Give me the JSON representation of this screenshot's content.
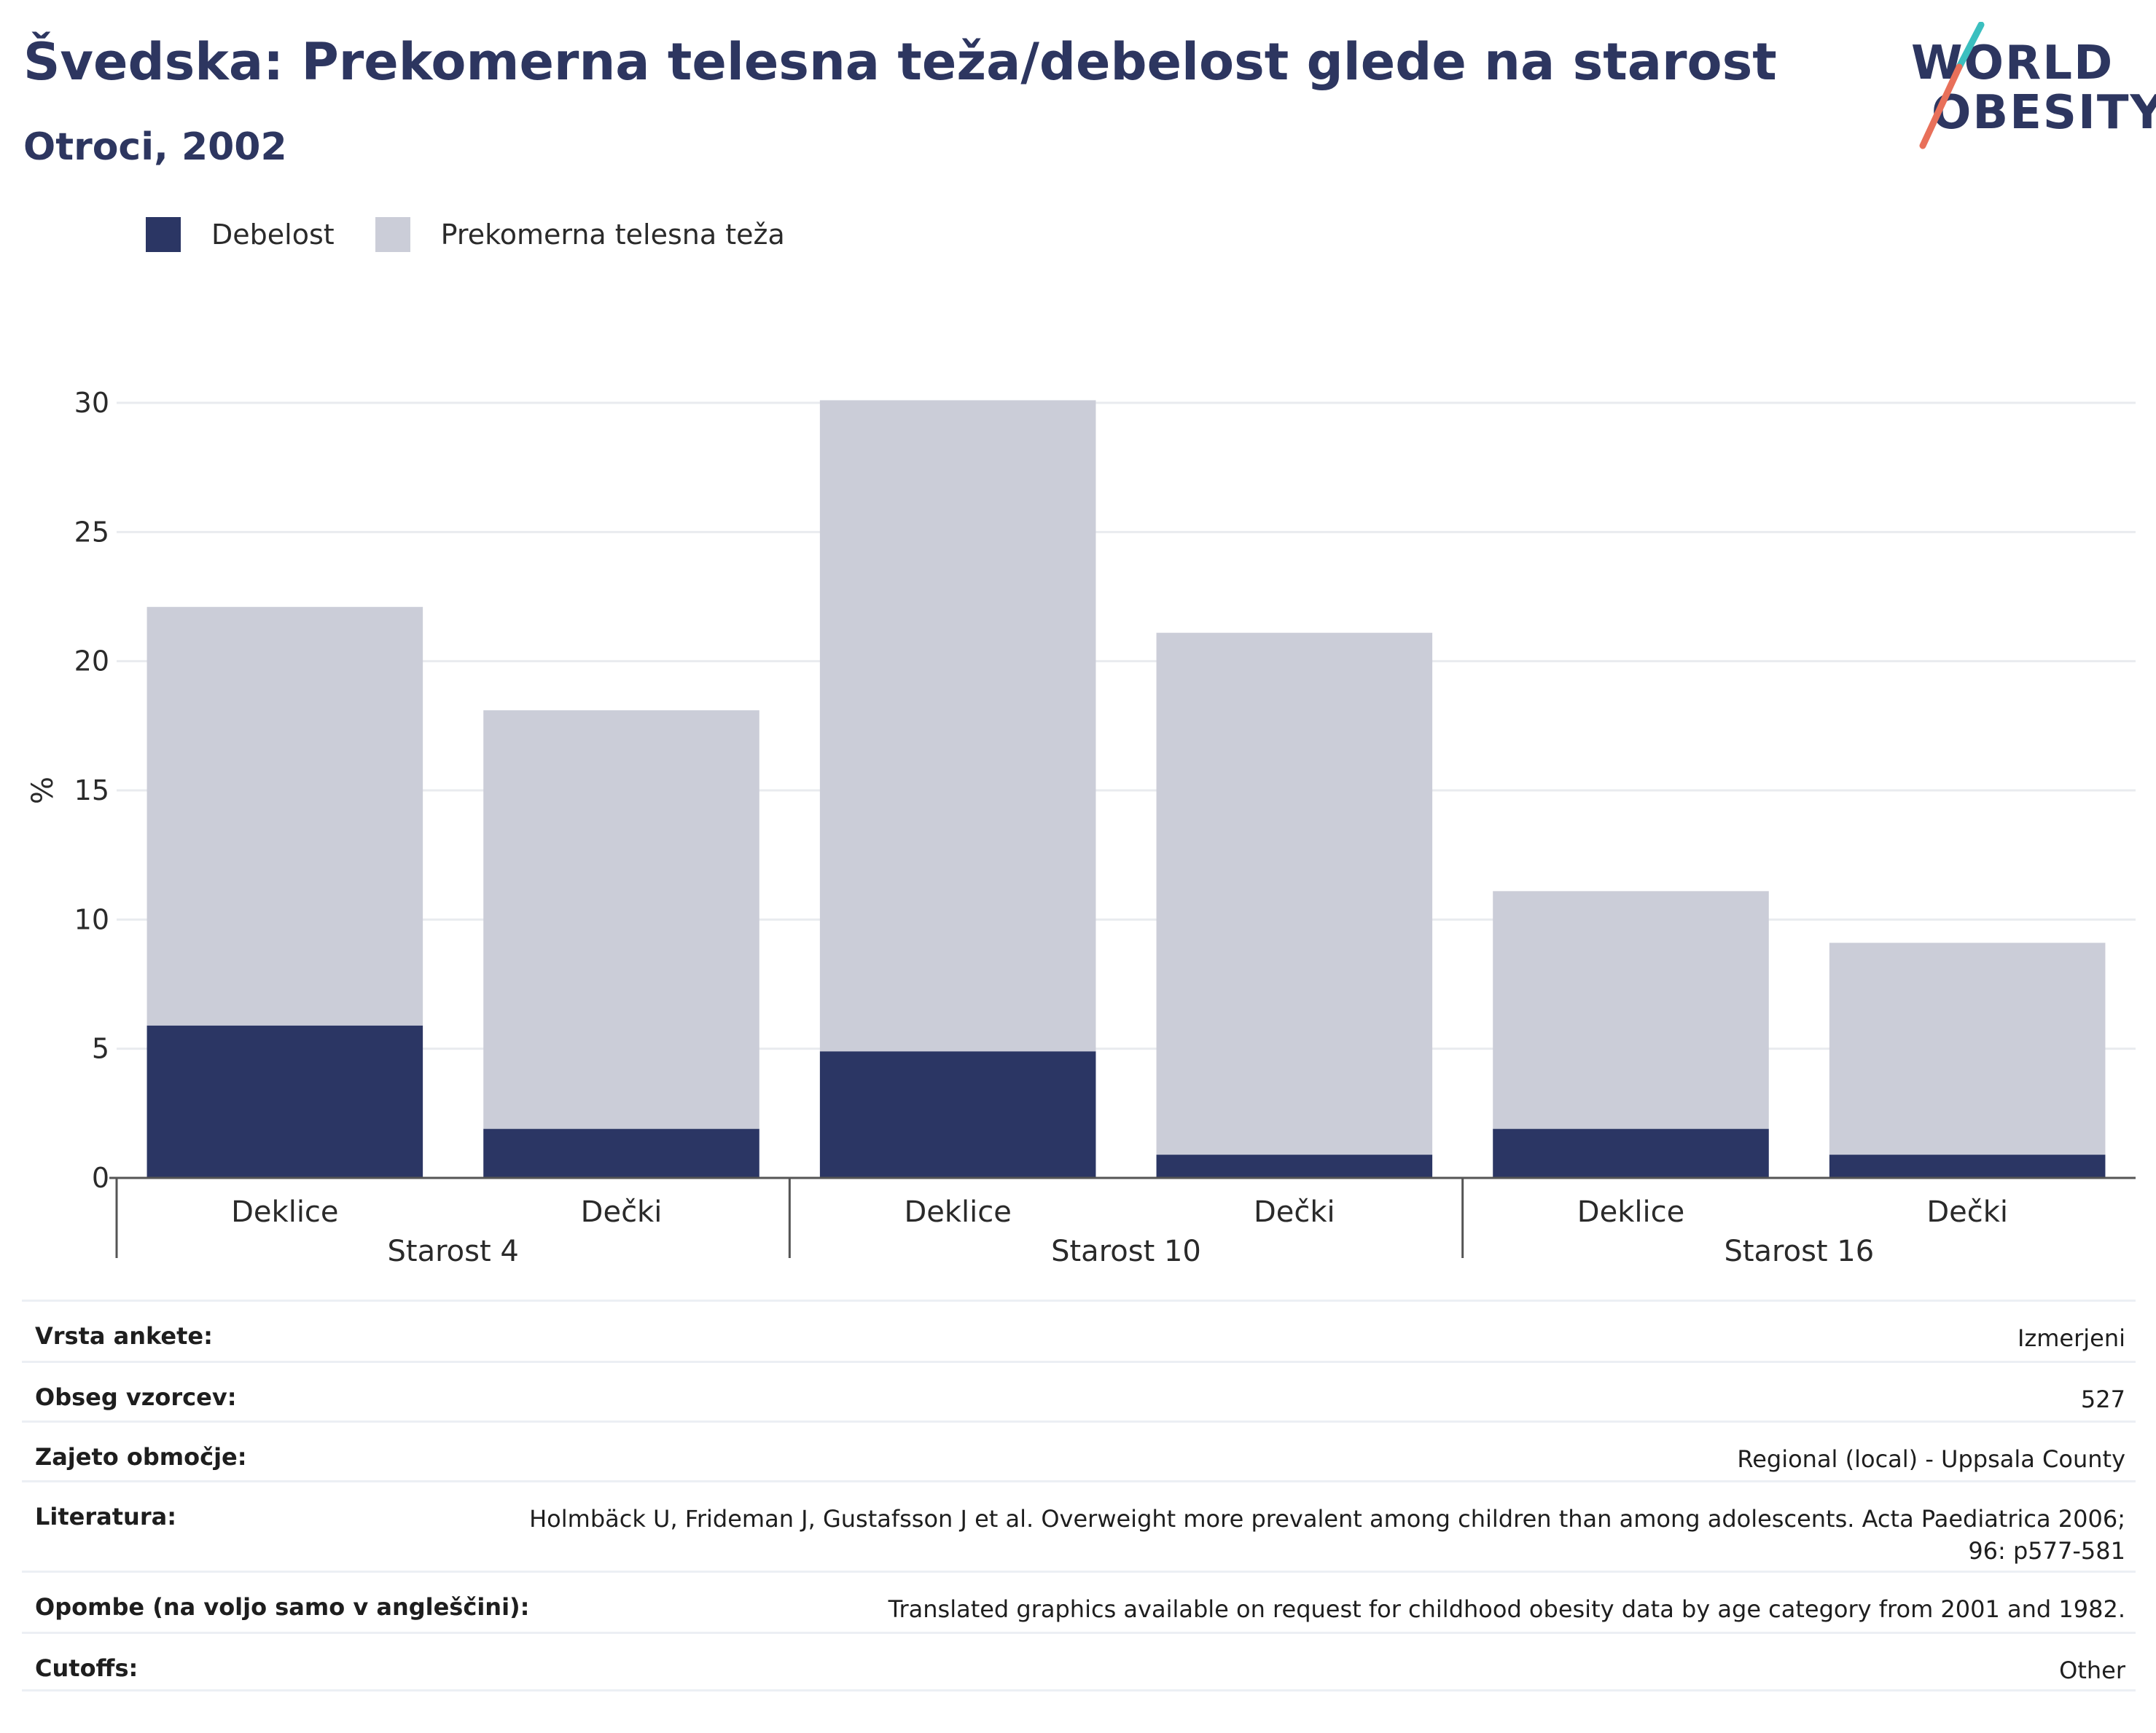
{
  "header": {
    "title": "Švedska: Prekomerna telesna teža/debelost glede na starost",
    "subtitle": "Otroci, 2002"
  },
  "logo": {
    "line1": "WORLD",
    "line2": "OBESITY",
    "accent_colors": [
      "#3bbfbf",
      "#e8705a"
    ]
  },
  "colors": {
    "obesity": "#2b3664",
    "overweight": "#cbcdd8",
    "grid": "#e9ebef",
    "axis": "#555555"
  },
  "chart_data": {
    "type": "bar",
    "stacked": true,
    "ylabel": "%",
    "ylim": [
      0,
      30
    ],
    "yticks": [
      0,
      5,
      10,
      15,
      20,
      25,
      30
    ],
    "groups": [
      {
        "label": "Starost 4",
        "categories": [
          "Deklice",
          "Dečki"
        ]
      },
      {
        "label": "Starost 10",
        "categories": [
          "Deklice",
          "Dečki"
        ]
      },
      {
        "label": "Starost 16",
        "categories": [
          "Deklice",
          "Dečki"
        ]
      }
    ],
    "series": [
      {
        "name": "Debelost",
        "values": [
          5.9,
          1.9,
          4.9,
          0.9,
          1.9,
          0.9
        ]
      },
      {
        "name": "Prekomerna telesna teža",
        "values": [
          16.2,
          16.2,
          25.2,
          20.2,
          9.2,
          8.2
        ]
      }
    ],
    "legend_position": "top-left",
    "grid": true
  },
  "info": [
    {
      "key": "Vrsta ankete:",
      "value": "Izmerjeni"
    },
    {
      "key": "Obseg vzorcev:",
      "value": "527"
    },
    {
      "key": "Zajeto območje:",
      "value": "Regional (local) - Uppsala County"
    },
    {
      "key": "Literatura:",
      "value": "Holmbäck U, Frideman J, Gustafsson J et al. Overweight more prevalent among children than among adolescents. Acta Paediatrica 2006;\n96: p577-581"
    },
    {
      "key": "Opombe (na voljo samo v angleščini):",
      "value": "Translated graphics available on request for childhood obesity data by age category from 2001 and 1982."
    },
    {
      "key": "Cutoffs:",
      "value": "Other"
    }
  ]
}
